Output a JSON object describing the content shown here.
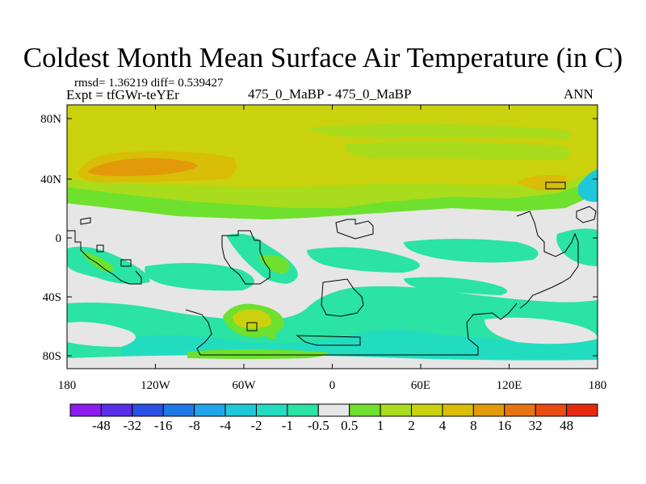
{
  "title": "Coldest Month Mean Surface Air Temperature (in C)",
  "stats": "rmsd= 1.36219 diff= 0.539427",
  "experiment": "Expt = tfGWr-teYEr",
  "period": "475_0_MaBP - 475_0_MaBP",
  "season": "ANN",
  "map": {
    "lat_ticks": [
      "80N",
      "40N",
      "0",
      "40S",
      "80S"
    ],
    "lon_ticks": [
      "180",
      "120W",
      "60W",
      "0",
      "60E",
      "120E",
      "180"
    ]
  },
  "colorbar": {
    "colors": [
      "#8c1cf0",
      "#5a2ee6",
      "#2b50e6",
      "#1e78e8",
      "#1fa5ea",
      "#1fc8d8",
      "#22dcc0",
      "#2ae3a4",
      "#e6e6e6",
      "#6ee02e",
      "#a8dc1c",
      "#c9d20c",
      "#d9bd06",
      "#e29a08",
      "#e67410",
      "#e84c10",
      "#e8280e"
    ],
    "labels": [
      "-48",
      "-32",
      "-16",
      "-8",
      "-4",
      "-2",
      "-1",
      "-0.5",
      "0.5",
      "1",
      "2",
      "4",
      "8",
      "16",
      "32",
      "48"
    ]
  },
  "palette": {
    "neutral": "#e6e6e6",
    "cyan": "#2ae3a4",
    "teal": "#22dcc0",
    "aqua": "#1fc8d8",
    "green": "#6ee02e",
    "yellow_green": "#a8dc1c",
    "olive": "#c9d20c",
    "gold": "#d9bd06",
    "orange": "#e29a08",
    "coastline": "#000000"
  }
}
